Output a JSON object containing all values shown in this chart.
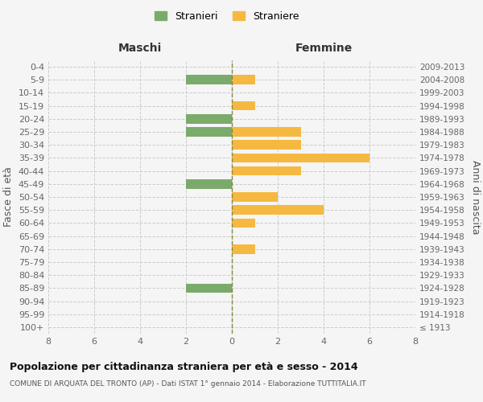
{
  "age_groups": [
    "0-4",
    "5-9",
    "10-14",
    "15-19",
    "20-24",
    "25-29",
    "30-34",
    "35-39",
    "40-44",
    "45-49",
    "50-54",
    "55-59",
    "60-64",
    "65-69",
    "70-74",
    "75-79",
    "80-84",
    "85-89",
    "90-94",
    "95-99",
    "100+"
  ],
  "birth_years": [
    "2009-2013",
    "2004-2008",
    "1999-2003",
    "1994-1998",
    "1989-1993",
    "1984-1988",
    "1979-1983",
    "1974-1978",
    "1969-1973",
    "1964-1968",
    "1959-1963",
    "1954-1958",
    "1949-1953",
    "1944-1948",
    "1939-1943",
    "1934-1938",
    "1929-1933",
    "1924-1928",
    "1919-1923",
    "1914-1918",
    "≤ 1913"
  ],
  "maschi": [
    0,
    -2,
    0,
    0,
    -2,
    -2,
    0,
    0,
    0,
    -2,
    0,
    0,
    0,
    0,
    0,
    0,
    0,
    -2,
    0,
    0,
    0
  ],
  "femmine": [
    0,
    1,
    0,
    1,
    0,
    3,
    3,
    6,
    3,
    0,
    2,
    4,
    1,
    0,
    1,
    0,
    0,
    0,
    0,
    0,
    0
  ],
  "maschi_color": "#7aab6b",
  "femmine_color": "#f5b942",
  "xlim": [
    -8,
    8
  ],
  "xticks": [
    -8,
    -6,
    -4,
    -2,
    0,
    2,
    4,
    6,
    8
  ],
  "xticklabels": [
    "8",
    "6",
    "4",
    "2",
    "0",
    "2",
    "4",
    "6",
    "8"
  ],
  "title": "Popolazione per cittadinanza straniera per età e sesso - 2014",
  "subtitle": "COMUNE DI ARQUATA DEL TRONTO (AP) - Dati ISTAT 1° gennaio 2014 - Elaborazione TUTTITALIA.IT",
  "xlabel_left": "Maschi",
  "xlabel_right": "Femmine",
  "ylabel": "Fasce di età",
  "ylabel_right": "Anni di nascita",
  "legend_maschi": "Stranieri",
  "legend_femmine": "Straniere",
  "bg_color": "#f5f5f5",
  "grid_color": "#cccccc",
  "bar_height": 0.72
}
